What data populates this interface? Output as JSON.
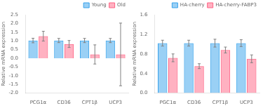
{
  "chart_data": [
    {
      "type": "bar",
      "categories": [
        "PCG1α",
        "CD36",
        "CPT1β",
        "UCP3"
      ],
      "series": [
        {
          "name": "Young",
          "values": [
            1.02,
            1.02,
            1.02,
            1.02
          ],
          "errors": [
            0.13,
            0.12,
            0.12,
            0.12
          ]
        },
        {
          "name": "Old",
          "values": [
            1.27,
            0.82,
            0.22,
            0.22
          ],
          "errors": [
            0.28,
            0.2,
            0.55,
            1.8
          ]
        }
      ],
      "ylabel": "Relative mRNA expression",
      "ylim": [
        -2.0,
        2.5
      ],
      "yticks": [
        {
          "value": -2.0,
          "label": "-2.0"
        },
        {
          "value": -1.5,
          "label": "-1.5"
        },
        {
          "value": -1.0,
          "label": "-1.0"
        },
        {
          "value": -0.5,
          "label": "-0.5"
        },
        {
          "value": 0,
          "label": "0.0"
        },
        {
          "value": 0.5,
          "label": "0.5"
        },
        {
          "value": 1.0,
          "label": "1.0"
        },
        {
          "value": 1.5,
          "label": "1.5"
        },
        {
          "value": 2.0,
          "label": "2.0"
        },
        {
          "value": 2.5,
          "label": "2.5"
        }
      ],
      "grid": false,
      "legend": "upper right"
    },
    {
      "type": "bar",
      "categories": [
        "PGC1α",
        "CD36",
        "CPT1β",
        "UCP3"
      ],
      "series": [
        {
          "name": "HA-cherry",
          "values": [
            1.02,
            1.02,
            1.02,
            1.02
          ],
          "errors": [
            0.06,
            0.06,
            0.08,
            0.07
          ]
        },
        {
          "name": "HA-cherry-FABP3",
          "values": [
            0.72,
            0.55,
            0.88,
            0.7
          ],
          "errors": [
            0.08,
            0.05,
            0.06,
            0.08
          ]
        }
      ],
      "ylabel": "Relative mRNA expression",
      "ylim": [
        0,
        1.6
      ],
      "yticks": [
        {
          "value": 0,
          "label": "0.0"
        },
        {
          "value": 0.4,
          "label": "0.4"
        },
        {
          "value": 0.8,
          "label": "0.8"
        },
        {
          "value": 1.2,
          "label": "1.2"
        },
        {
          "value": 1.6,
          "label": "1.6"
        }
      ],
      "grid": false,
      "legend": "upper right"
    }
  ]
}
